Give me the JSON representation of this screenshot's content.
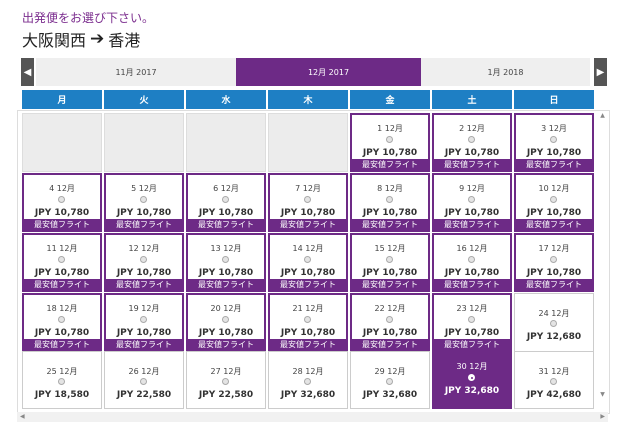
{
  "header": {
    "prompt": "出発便をお選び下さい。",
    "origin": "大阪関西",
    "destination": "香港"
  },
  "months": {
    "prev": "11月 2017",
    "current": "12月 2017",
    "next": "1月 2018"
  },
  "weekdays": [
    "月",
    "火",
    "水",
    "木",
    "金",
    "土",
    "日"
  ],
  "tag_label": "最安値フライト",
  "weeks": [
    [
      null,
      null,
      null,
      null,
      {
        "date": "1 12月",
        "price": "JPY 10,780",
        "cheapest": true
      },
      {
        "date": "2 12月",
        "price": "JPY 10,780",
        "cheapest": true
      },
      {
        "date": "3 12月",
        "price": "JPY 10,780",
        "cheapest": true
      }
    ],
    [
      {
        "date": "4 12月",
        "price": "JPY 10,780",
        "cheapest": true
      },
      {
        "date": "5 12月",
        "price": "JPY 10,780",
        "cheapest": true
      },
      {
        "date": "6 12月",
        "price": "JPY 10,780",
        "cheapest": true
      },
      {
        "date": "7 12月",
        "price": "JPY 10,780",
        "cheapest": true
      },
      {
        "date": "8 12月",
        "price": "JPY 10,780",
        "cheapest": true
      },
      {
        "date": "9 12月",
        "price": "JPY 10,780",
        "cheapest": true
      },
      {
        "date": "10 12月",
        "price": "JPY 10,780",
        "cheapest": true
      }
    ],
    [
      {
        "date": "11 12月",
        "price": "JPY 10,780",
        "cheapest": true
      },
      {
        "date": "12 12月",
        "price": "JPY 10,780",
        "cheapest": true
      },
      {
        "date": "13 12月",
        "price": "JPY 10,780",
        "cheapest": true
      },
      {
        "date": "14 12月",
        "price": "JPY 10,780",
        "cheapest": true
      },
      {
        "date": "15 12月",
        "price": "JPY 10,780",
        "cheapest": true
      },
      {
        "date": "16 12月",
        "price": "JPY 10,780",
        "cheapest": true
      },
      {
        "date": "17 12月",
        "price": "JPY 10,780",
        "cheapest": true
      }
    ],
    [
      {
        "date": "18 12月",
        "price": "JPY 10,780",
        "cheapest": true
      },
      {
        "date": "19 12月",
        "price": "JPY 10,780",
        "cheapest": true
      },
      {
        "date": "20 12月",
        "price": "JPY 10,780",
        "cheapest": true
      },
      {
        "date": "21 12月",
        "price": "JPY 10,780",
        "cheapest": true
      },
      {
        "date": "22 12月",
        "price": "JPY 10,780",
        "cheapest": true
      },
      {
        "date": "23 12月",
        "price": "JPY 10,780",
        "cheapest": true
      },
      {
        "date": "24 12月",
        "price": "JPY 12,680",
        "cheapest": false
      }
    ],
    [
      {
        "date": "25 12月",
        "price": "JPY 18,580",
        "cheapest": false
      },
      {
        "date": "26 12月",
        "price": "JPY 22,580",
        "cheapest": false
      },
      {
        "date": "27 12月",
        "price": "JPY 22,580",
        "cheapest": false
      },
      {
        "date": "28 12月",
        "price": "JPY 32,680",
        "cheapest": false
      },
      {
        "date": "29 12月",
        "price": "JPY 32,680",
        "cheapest": false
      },
      {
        "date": "30 12月",
        "price": "JPY 32,680",
        "cheapest": false,
        "selected": true
      },
      {
        "date": "31 12月",
        "price": "JPY 42,680",
        "cheapest": false
      }
    ]
  ]
}
